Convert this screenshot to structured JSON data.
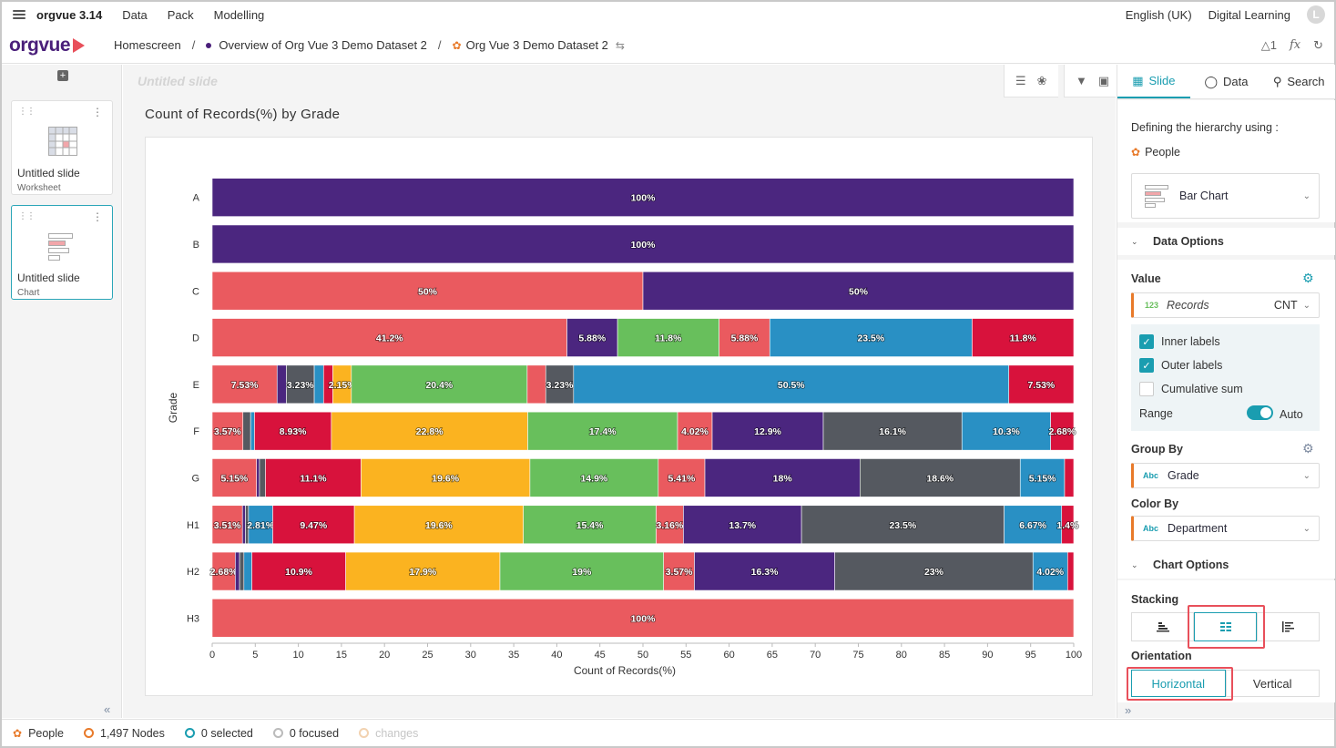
{
  "menubar": {
    "app_name": "orgvue 3.14",
    "items": [
      "Data",
      "Pack",
      "Modelling"
    ],
    "language": "English (UK)",
    "workspace": "Digital Learning",
    "avatar_initial": "L"
  },
  "breadcrumb": {
    "logo": "orgvue",
    "home": "Homescreen",
    "sep": "/",
    "overview": "Overview of Org Vue 3 Demo Dataset 2",
    "dataset": "Org Vue 3 Demo Dataset 2",
    "node_count_icon_text": "1",
    "fx_label": "fx"
  },
  "slides": {
    "add_symbol": "+",
    "items": [
      {
        "title": "Untitled slide",
        "type": "Worksheet"
      },
      {
        "title": "Untitled slide",
        "type": "Chart"
      }
    ]
  },
  "main": {
    "slide_title_placeholder": "Untitled slide"
  },
  "right_panel": {
    "tabs": [
      "Slide",
      "Data",
      "Search"
    ],
    "hierarchy_label": "Defining the hierarchy using :",
    "hierarchy_value": "People",
    "chart_type": "Bar Chart",
    "data_options_label": "Data Options",
    "value_label": "Value",
    "value_icon_text": "123",
    "value_field": "Records",
    "value_agg": "CNT",
    "inner_labels": "Inner labels",
    "outer_labels": "Outer labels",
    "cumulative_sum": "Cumulative sum",
    "range_label": "Range",
    "range_value": "Auto",
    "group_by_label": "Group By",
    "group_by_icon_text": "Abc",
    "group_by_value": "Grade",
    "color_by_label": "Color By",
    "color_by_icon_text": "Abc",
    "color_by_value": "Department",
    "chart_options_label": "Chart Options",
    "stacking_label": "Stacking",
    "orientation_label": "Orientation",
    "orientation_options": [
      "Horizontal",
      "Vertical"
    ]
  },
  "status": {
    "dataset": "People",
    "nodes": "1,497 Nodes",
    "selected": "0 selected",
    "focused": "0 focused",
    "changes": "changes"
  },
  "colors": {
    "accent": "#1a9db0",
    "brand_purple": "#4a1f7a",
    "highlight_red": "#e8505b"
  },
  "chart_data": {
    "type": "bar",
    "orientation": "horizontal",
    "stacking": "percent",
    "title": "Count of Records(%) by Grade",
    "xlabel": "Count of Records(%)",
    "ylabel": "Grade",
    "xlim": [
      0,
      100
    ],
    "xticks": [
      0,
      5,
      10,
      15,
      20,
      25,
      30,
      35,
      40,
      45,
      50,
      55,
      60,
      65,
      70,
      75,
      80,
      85,
      90,
      95,
      100
    ],
    "categories": [
      "A",
      "B",
      "C",
      "D",
      "E",
      "F",
      "G",
      "H1",
      "H2",
      "H3"
    ],
    "palette": {
      "red": "#ea5a5f",
      "purple": "#4b267f",
      "green": "#68bf5c",
      "blue": "#2990c4",
      "crimson": "#d8123c",
      "slate": "#555960",
      "yellow": "#fbb320",
      "teal": "#3a7fa0"
    },
    "rows": [
      {
        "grade": "A",
        "segments": [
          {
            "value": 100,
            "color": "purple",
            "label": "100%"
          }
        ]
      },
      {
        "grade": "B",
        "segments": [
          {
            "value": 100,
            "color": "purple",
            "label": "100%"
          }
        ]
      },
      {
        "grade": "C",
        "segments": [
          {
            "value": 50,
            "color": "red",
            "label": "50%"
          },
          {
            "value": 50,
            "color": "purple",
            "label": "50%"
          }
        ]
      },
      {
        "grade": "D",
        "segments": [
          {
            "value": 41.2,
            "color": "red",
            "label": "41.2%"
          },
          {
            "value": 5.88,
            "color": "purple",
            "label": "5.88%"
          },
          {
            "value": 11.8,
            "color": "green",
            "label": "11.8%"
          },
          {
            "value": 5.88,
            "color": "red",
            "label": "5.88%"
          },
          {
            "value": 23.5,
            "color": "blue",
            "label": "23.5%"
          },
          {
            "value": 11.8,
            "color": "crimson",
            "label": "11.8%"
          }
        ]
      },
      {
        "grade": "E",
        "segments": [
          {
            "value": 7.53,
            "color": "red",
            "label": "7.53%"
          },
          {
            "value": 1.08,
            "color": "purple",
            "label": ""
          },
          {
            "value": 3.23,
            "color": "slate",
            "label": "3.23%"
          },
          {
            "value": 1.08,
            "color": "blue",
            "label": ""
          },
          {
            "value": 1.08,
            "color": "crimson",
            "label": ""
          },
          {
            "value": 2.15,
            "color": "yellow",
            "label": "2.15%"
          },
          {
            "value": 20.4,
            "color": "green",
            "label": "20.4%"
          },
          {
            "value": 2.15,
            "color": "red",
            "label": ""
          },
          {
            "value": 3.23,
            "color": "slate",
            "label": "3.23%"
          },
          {
            "value": 50.5,
            "color": "blue",
            "label": "50.5%"
          },
          {
            "value": 7.53,
            "color": "crimson",
            "label": "7.53%"
          }
        ]
      },
      {
        "grade": "F",
        "segments": [
          {
            "value": 3.57,
            "color": "red",
            "label": "3.57%"
          },
          {
            "value": 0.89,
            "color": "slate",
            "label": ""
          },
          {
            "value": 0.45,
            "color": "blue",
            "label": ""
          },
          {
            "value": 8.93,
            "color": "crimson",
            "label": "8.93%"
          },
          {
            "value": 22.8,
            "color": "yellow",
            "label": "22.8%"
          },
          {
            "value": 17.4,
            "color": "green",
            "label": "17.4%"
          },
          {
            "value": 4.02,
            "color": "red",
            "label": "4.02%"
          },
          {
            "value": 12.9,
            "color": "purple",
            "label": "12.9%"
          },
          {
            "value": 16.1,
            "color": "slate",
            "label": "16.1%"
          },
          {
            "value": 10.3,
            "color": "blue",
            "label": "10.3%"
          },
          {
            "value": 2.68,
            "color": "crimson",
            "label": "2.68%"
          }
        ]
      },
      {
        "grade": "G",
        "segments": [
          {
            "value": 5.15,
            "color": "red",
            "label": "5.15%"
          },
          {
            "value": 0.34,
            "color": "purple",
            "label": ""
          },
          {
            "value": 0.69,
            "color": "slate",
            "label": ""
          },
          {
            "value": 11.1,
            "color": "crimson",
            "label": "11.1%"
          },
          {
            "value": 19.6,
            "color": "yellow",
            "label": "19.6%"
          },
          {
            "value": 14.9,
            "color": "green",
            "label": "14.9%"
          },
          {
            "value": 5.41,
            "color": "red",
            "label": "5.41%"
          },
          {
            "value": 18,
            "color": "purple",
            "label": "18%"
          },
          {
            "value": 18.6,
            "color": "slate",
            "label": "18.6%"
          },
          {
            "value": 5.15,
            "color": "blue",
            "label": "5.15%"
          },
          {
            "value": 1.06,
            "color": "crimson",
            "label": ""
          }
        ]
      },
      {
        "grade": "H1",
        "segments": [
          {
            "value": 3.51,
            "color": "red",
            "label": "3.51%"
          },
          {
            "value": 0.35,
            "color": "purple",
            "label": ""
          },
          {
            "value": 0.35,
            "color": "slate",
            "label": ""
          },
          {
            "value": 2.81,
            "color": "blue",
            "label": "2.81%"
          },
          {
            "value": 9.47,
            "color": "crimson",
            "label": "9.47%"
          },
          {
            "value": 19.6,
            "color": "yellow",
            "label": "19.6%"
          },
          {
            "value": 15.4,
            "color": "green",
            "label": "15.4%"
          },
          {
            "value": 3.16,
            "color": "red",
            "label": "3.16%"
          },
          {
            "value": 13.7,
            "color": "purple",
            "label": "13.7%"
          },
          {
            "value": 23.5,
            "color": "slate",
            "label": "23.5%"
          },
          {
            "value": 6.67,
            "color": "blue",
            "label": "6.67%"
          },
          {
            "value": 1.4,
            "color": "crimson",
            "label": "1.4%"
          }
        ]
      },
      {
        "grade": "H2",
        "segments": [
          {
            "value": 2.68,
            "color": "red",
            "label": "2.68%"
          },
          {
            "value": 0.5,
            "color": "purple",
            "label": ""
          },
          {
            "value": 0.5,
            "color": "slate",
            "label": ""
          },
          {
            "value": 0.92,
            "color": "blue",
            "label": ""
          },
          {
            "value": 10.9,
            "color": "crimson",
            "label": "10.9%"
          },
          {
            "value": 17.9,
            "color": "yellow",
            "label": "17.9%"
          },
          {
            "value": 19,
            "color": "green",
            "label": "19%"
          },
          {
            "value": 3.57,
            "color": "red",
            "label": "3.57%"
          },
          {
            "value": 16.3,
            "color": "purple",
            "label": "16.3%"
          },
          {
            "value": 23,
            "color": "slate",
            "label": "23%"
          },
          {
            "value": 4.02,
            "color": "blue",
            "label": "4.02%"
          },
          {
            "value": 0.71,
            "color": "crimson",
            "label": ""
          }
        ]
      },
      {
        "grade": "H3",
        "segments": [
          {
            "value": 100,
            "color": "red",
            "label": "100%"
          }
        ]
      }
    ]
  }
}
